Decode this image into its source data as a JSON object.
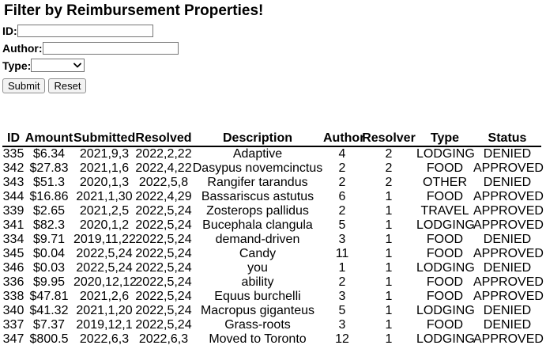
{
  "page": {
    "title": "Filter by Reimbursement Properties!"
  },
  "form": {
    "id_label": "ID:",
    "id_value": "",
    "author_label": "Author:",
    "author_value": "",
    "type_label": "Type:",
    "type_selected": "",
    "submit_label": "Submit",
    "reset_label": "Reset"
  },
  "table": {
    "columns": [
      "ID",
      "Amount",
      "Submitted",
      "Resolved",
      "Description",
      "Author",
      "Resolver",
      "Type",
      "Status"
    ],
    "rows": [
      [
        "335",
        "$6.34",
        "2021,9,3",
        "2022,2,22",
        "Adaptive",
        "4",
        "2",
        "LODGING",
        "DENIED"
      ],
      [
        "342",
        "$27.83",
        "2021,1,6",
        "2022,4,22",
        "Dasypus novemcinctus",
        "2",
        "2",
        "FOOD",
        "APPROVED"
      ],
      [
        "343",
        "$51.3",
        "2020,1,3",
        "2022,5,8",
        "Rangifer tarandus",
        "2",
        "2",
        "OTHER",
        "DENIED"
      ],
      [
        "344",
        "$16.86",
        "2021,1,30",
        "2022,4,29",
        "Bassariscus astutus",
        "6",
        "1",
        "FOOD",
        "APPROVED"
      ],
      [
        "339",
        "$2.65",
        "2021,2,5",
        "2022,5,24",
        "Zosterops pallidus",
        "2",
        "1",
        "TRAVEL",
        "APPROVED"
      ],
      [
        "341",
        "$82.3",
        "2020,1,2",
        "2022,5,24",
        "Bucephala clangula",
        "5",
        "1",
        "LODGING",
        "APPROVED"
      ],
      [
        "334",
        "$9.71",
        "2019,11,22",
        "2022,5,24",
        "demand-driven",
        "3",
        "1",
        "FOOD",
        "DENIED"
      ],
      [
        "345",
        "$0.04",
        "2022,5,24",
        "2022,5,24",
        "Candy",
        "11",
        "1",
        "FOOD",
        "APPROVED"
      ],
      [
        "346",
        "$0.03",
        "2022,5,24",
        "2022,5,24",
        "you",
        "1",
        "1",
        "LODGING",
        "DENIED"
      ],
      [
        "336",
        "$9.95",
        "2020,12,12",
        "2022,5,24",
        "ability",
        "2",
        "1",
        "FOOD",
        "APPROVED"
      ],
      [
        "338",
        "$47.81",
        "2021,2,6",
        "2022,5,24",
        "Equus burchelli",
        "3",
        "1",
        "FOOD",
        "APPROVED"
      ],
      [
        "340",
        "$41.32",
        "2021,1,20",
        "2022,5,24",
        "Macropus giganteus",
        "5",
        "1",
        "LODGING",
        "DENIED"
      ],
      [
        "337",
        "$7.37",
        "2019,12,1",
        "2022,5,24",
        "Grass-roots",
        "3",
        "1",
        "FOOD",
        "DENIED"
      ],
      [
        "347",
        "$800.5",
        "2022,6,3",
        "2022,6,3",
        "Moved to Toronto",
        "12",
        "1",
        "LODGING",
        "APPROVED"
      ]
    ]
  }
}
